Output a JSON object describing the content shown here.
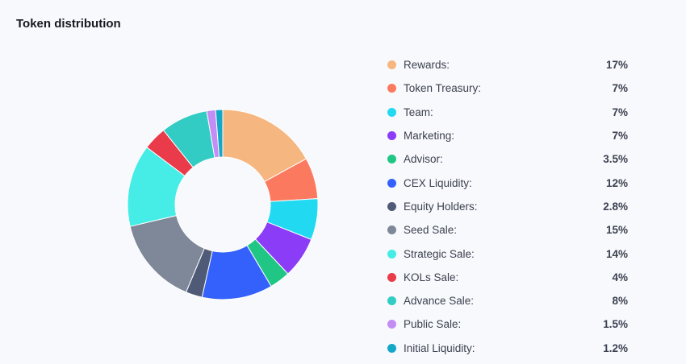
{
  "header": {
    "title": "Token distribution"
  },
  "chart_data": {
    "type": "pie",
    "style": "donut",
    "legend_position": "right",
    "slices": [
      {
        "label": "Rewards:",
        "value": 17,
        "display": "17%",
        "color": "#f6b67f"
      },
      {
        "label": "Token Treasury:",
        "value": 7,
        "display": "7%",
        "color": "#fb7a5f"
      },
      {
        "label": "Team:",
        "value": 7,
        "display": "7%",
        "color": "#22d9f2"
      },
      {
        "label": "Marketing:",
        "value": 7,
        "display": "7%",
        "color": "#8b3cf7"
      },
      {
        "label": "Advisor:",
        "value": 3.5,
        "display": "3.5%",
        "color": "#20c784"
      },
      {
        "label": "CEX Liquidity:",
        "value": 12,
        "display": "12%",
        "color": "#3461fb"
      },
      {
        "label": "Equity Holders:",
        "value": 2.8,
        "display": "2.8%",
        "color": "#4e5a76"
      },
      {
        "label": "Seed Sale:",
        "value": 15,
        "display": "15%",
        "color": "#7f8898"
      },
      {
        "label": "Strategic Sale:",
        "value": 14,
        "display": "14%",
        "color": "#45ede6"
      },
      {
        "label": "KOLs Sale:",
        "value": 4,
        "display": "4%",
        "color": "#e93b4a"
      },
      {
        "label": "Advance Sale:",
        "value": 8,
        "display": "8%",
        "color": "#33ccc4"
      },
      {
        "label": "Public Sale:",
        "value": 1.5,
        "display": "1.5%",
        "color": "#c48cf5"
      },
      {
        "label": "Initial Liquidity:",
        "value": 1.2,
        "display": "1.2%",
        "color": "#14a8c8"
      }
    ]
  }
}
